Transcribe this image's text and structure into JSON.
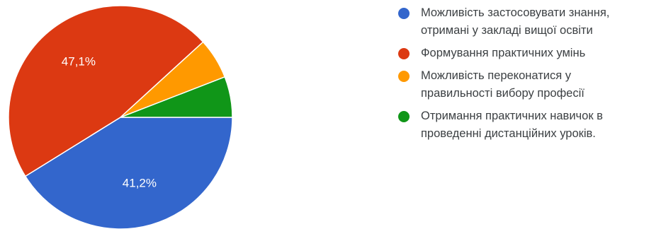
{
  "chart_data": {
    "type": "pie",
    "title": "",
    "slices": [
      {
        "label": "Можливість застосовувати знання, отримані у закладі вищої освіти",
        "value": 41.2,
        "display": "41,2%",
        "color": "#3366cc"
      },
      {
        "label": "Формування практичних умінь",
        "value": 47.1,
        "display": "47,1%",
        "color": "#dc3912"
      },
      {
        "label": "Можливість переконатися у правильності вибору професії",
        "value": 5.9,
        "display": "",
        "color": "#ff9900"
      },
      {
        "label": "Отримання практичних навичок в проведенні дистанційних уроків.",
        "value": 5.9,
        "display": "",
        "color": "#109618"
      }
    ],
    "legend_position": "right"
  },
  "legend": {
    "items": [
      {
        "lines": [
          "Можливість застосовувати знання,",
          "отримані у закладі вищої освіти"
        ],
        "color": "#3366cc"
      },
      {
        "lines": [
          "Формування практичних умінь"
        ],
        "color": "#dc3912"
      },
      {
        "lines": [
          "Можливість переконатися у",
          "правильності вибору професії"
        ],
        "color": "#ff9900"
      },
      {
        "lines": [
          "Отримання практичних навичок в",
          "проведенні дистанційних уроків."
        ],
        "color": "#109618"
      }
    ]
  }
}
